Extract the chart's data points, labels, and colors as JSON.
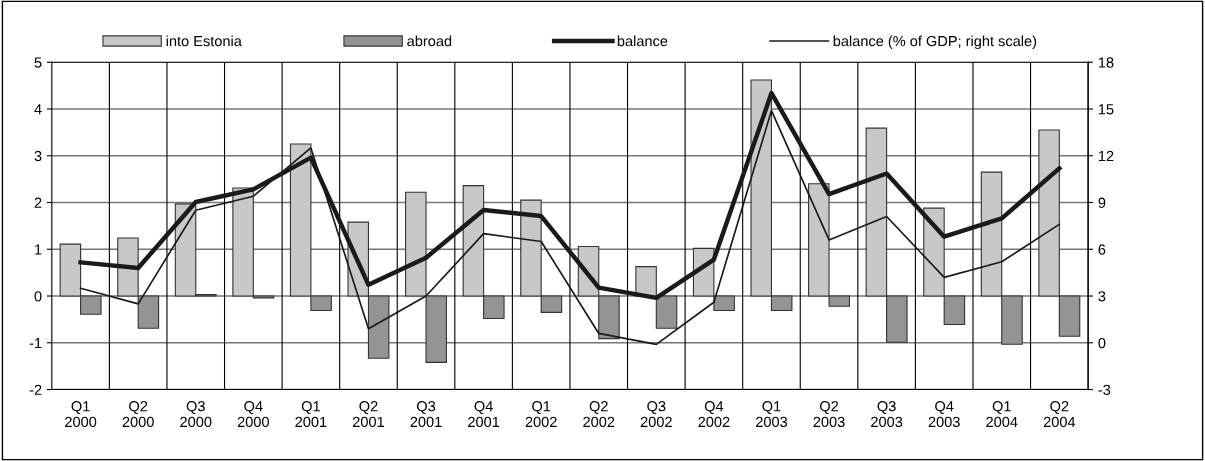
{
  "chart_data": {
    "type": "bar",
    "categories": [
      "Q1\n2000",
      "Q2\n2000",
      "Q3\n2000",
      "Q4\n2000",
      "Q1\n2001",
      "Q2\n2001",
      "Q3\n2001",
      "Q4\n2001",
      "Q1\n2002",
      "Q2\n2002",
      "Q3\n2002",
      "Q4\n2002",
      "Q1\n2003",
      "Q2\n2003",
      "Q3\n2003",
      "Q4\n2003",
      "Q1\n2004",
      "Q2\n2004"
    ],
    "series": [
      {
        "name": "into Estonia",
        "color": "#c8c8c8",
        "values": [
          1.11,
          1.24,
          1.97,
          2.31,
          3.25,
          1.58,
          2.22,
          2.36,
          2.05,
          1.06,
          0.63,
          1.02,
          4.62,
          2.4,
          3.59,
          1.88,
          2.65,
          3.55
        ]
      },
      {
        "name": "abroad",
        "color": "#949494",
        "values": [
          -0.39,
          -0.69,
          0.03,
          -0.04,
          -0.31,
          -1.33,
          -1.42,
          -0.48,
          -0.35,
          -0.91,
          -0.69,
          -0.31,
          -0.31,
          -0.22,
          -0.99,
          -0.61,
          -1.03,
          -0.86
        ]
      },
      {
        "name": "balance",
        "type": "line",
        "color": "#1a1a1a",
        "values": [
          0.72,
          0.6,
          2.01,
          2.28,
          2.96,
          0.24,
          0.82,
          1.84,
          1.71,
          0.18,
          -0.04,
          0.78,
          4.34,
          2.18,
          2.62,
          1.27,
          1.66,
          2.73
        ]
      },
      {
        "name": "balance (% of GDP; right scale)",
        "type": "line",
        "axis": "y2",
        "color": "#1a1a1a",
        "values": [
          3.5,
          2.5,
          8.5,
          9.4,
          12.5,
          0.9,
          3.0,
          7.0,
          6.5,
          0.6,
          -0.1,
          2.6,
          14.9,
          6.6,
          8.1,
          4.2,
          5.2,
          7.6
        ]
      }
    ],
    "ylim": [
      -2,
      5
    ],
    "yticks": [
      -2,
      -1,
      0,
      1,
      2,
      3,
      4,
      5
    ],
    "y2lim": [
      -3,
      18
    ],
    "y2ticks": [
      -3,
      0,
      3,
      6,
      9,
      12,
      15,
      18
    ],
    "grid": true,
    "legend": "top",
    "marker": "none",
    "line_style": "solid"
  }
}
